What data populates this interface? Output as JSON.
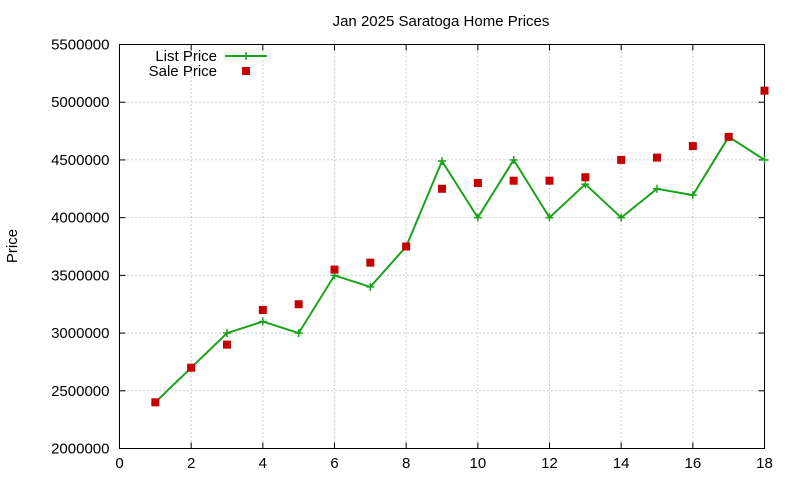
{
  "chart_data": {
    "type": "line",
    "title": "Jan 2025 Saratoga Home Prices",
    "xlabel": "",
    "ylabel": "Price",
    "xlim": [
      0,
      18
    ],
    "ylim": [
      2000000,
      5500000
    ],
    "xticks": [
      0,
      2,
      4,
      6,
      8,
      10,
      12,
      14,
      16,
      18
    ],
    "yticks": [
      2000000,
      2500000,
      3000000,
      3500000,
      4000000,
      4500000,
      5000000,
      5500000
    ],
    "grid": true,
    "legend_position": "top-left",
    "series": [
      {
        "name": "List Price",
        "style": "line+points",
        "marker": "plus",
        "color": "#1aa31a",
        "x": [
          1,
          2,
          3,
          4,
          5,
          6,
          7,
          8,
          9,
          10,
          11,
          12,
          13,
          14,
          15,
          16,
          17,
          18
        ],
        "y": [
          2400000,
          2700000,
          3000000,
          3100000,
          3000000,
          3500000,
          3400000,
          3750000,
          4490000,
          4000000,
          4500000,
          4000000,
          4290000,
          4000000,
          4250000,
          4195000,
          4700000,
          4500000
        ]
      },
      {
        "name": "Sale Price",
        "style": "points",
        "marker": "square",
        "color": "#c40000",
        "x": [
          1,
          2,
          3,
          4,
          5,
          6,
          7,
          8,
          9,
          10,
          11,
          12,
          13,
          14,
          15,
          16,
          17,
          18
        ],
        "y": [
          2400000,
          2700000,
          2900000,
          3200000,
          3250000,
          3550000,
          3610000,
          3750000,
          4250000,
          4300000,
          4320000,
          4320000,
          4350000,
          4500000,
          4520000,
          4620000,
          4700000,
          5100000
        ]
      }
    ]
  }
}
